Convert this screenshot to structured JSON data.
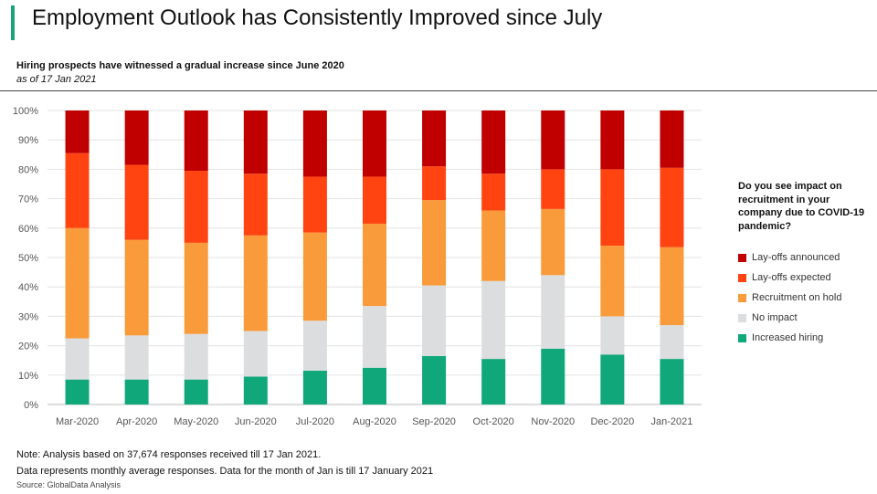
{
  "header": {
    "title": "Employment Outlook has Consistently Improved since July",
    "subtitle": "Hiring prospects have witnessed a gradual increase since June 2020",
    "as_of": "as of 17 Jan 2021"
  },
  "legend": {
    "title": "Do you see impact on recruitment in your company due to COVID-19 pandemic?",
    "items": [
      {
        "label": "Lay-offs announced",
        "color": "#c00000"
      },
      {
        "label": "Lay-offs expected",
        "color": "#ff4412"
      },
      {
        "label": "Recruitment on hold",
        "color": "#f99b3a"
      },
      {
        "label": "No impact",
        "color": "#dcdddf"
      },
      {
        "label": "Increased hiring",
        "color": "#10a77b"
      }
    ]
  },
  "footer": {
    "note_line1": "Note: Analysis based on 37,674 responses received till 17 Jan 2021.",
    "note_line2": "Data represents monthly average responses. Data for the month of Jan is till 17 January 2021",
    "source": "Source: GlobalData Analysis"
  },
  "chart_data": {
    "type": "bar",
    "stacked": true,
    "categories": [
      "Mar-2020",
      "Apr-2020",
      "May-2020",
      "Jun-2020",
      "Jul-2020",
      "Aug-2020",
      "Sep-2020",
      "Oct-2020",
      "Nov-2020",
      "Dec-2020",
      "Jan-2021"
    ],
    "y_ticks": [
      "0%",
      "10%",
      "20%",
      "30%",
      "40%",
      "50%",
      "60%",
      "70%",
      "80%",
      "90%",
      "100%"
    ],
    "ylim": [
      0,
      100
    ],
    "grid": true,
    "legend_position": "right",
    "series": [
      {
        "name": "Increased hiring",
        "color": "#10a77b",
        "values": [
          8.5,
          8.5,
          8.5,
          9.5,
          11.5,
          12.5,
          16.5,
          15.5,
          19.0,
          17.0,
          15.5
        ]
      },
      {
        "name": "No impact",
        "color": "#dcdddf",
        "values": [
          14.0,
          15.0,
          15.5,
          15.5,
          17.0,
          21.0,
          24.0,
          26.5,
          25.0,
          13.0,
          11.5
        ]
      },
      {
        "name": "Recruitment on hold",
        "color": "#f99b3a",
        "values": [
          37.5,
          32.5,
          31.0,
          32.5,
          30.0,
          28.0,
          29.0,
          24.0,
          22.5,
          24.0,
          26.5
        ]
      },
      {
        "name": "Lay-offs expected",
        "color": "#ff4412",
        "values": [
          25.5,
          25.5,
          24.5,
          21.0,
          19.0,
          16.0,
          11.5,
          12.5,
          13.5,
          26.0,
          27.0
        ]
      },
      {
        "name": "Lay-offs announced",
        "color": "#c00000",
        "values": [
          14.5,
          18.5,
          20.5,
          21.5,
          22.5,
          22.5,
          19.0,
          21.5,
          20.0,
          20.0,
          19.5
        ]
      }
    ]
  }
}
